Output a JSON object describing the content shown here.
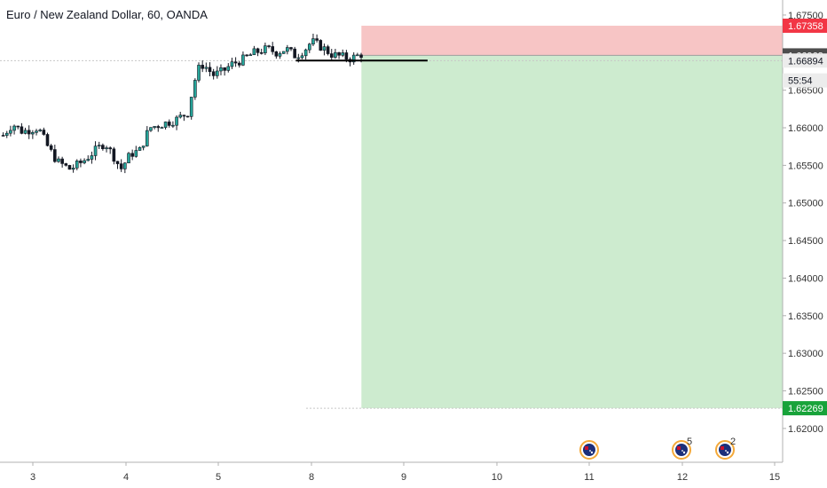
{
  "header": {
    "title": "Euro / New Zealand Dollar, 60, OANDA"
  },
  "chart_data": {
    "type": "candlestick",
    "symbol": "Euro / New Zealand Dollar",
    "interval": "60",
    "source": "OANDA",
    "ylim": [
      1.6155,
      1.677
    ],
    "xlim": [
      2.7,
      15.0
    ],
    "y_ticks": [
      "1.67500",
      "1.67000",
      "1.66500",
      "1.66000",
      "1.65500",
      "1.65000",
      "1.64500",
      "1.64000",
      "1.63500",
      "1.63000",
      "1.62500",
      "1.62000"
    ],
    "y_tick_values": [
      1.675,
      1.67,
      1.665,
      1.66,
      1.655,
      1.65,
      1.645,
      1.64,
      1.635,
      1.63,
      1.625,
      1.62
    ],
    "x_ticks": [
      "3",
      "4",
      "5",
      "8",
      "9",
      "10",
      "11",
      "12",
      "15"
    ],
    "x_tick_values": [
      3,
      4,
      5,
      6,
      7,
      8,
      9,
      10,
      11
    ],
    "price_path": [
      [
        2.75,
        1.659
      ],
      [
        2.9,
        1.6605
      ],
      [
        3.05,
        1.6595
      ],
      [
        3.3,
        1.66
      ],
      [
        3.45,
        1.6575
      ],
      [
        3.6,
        1.6555
      ],
      [
        3.8,
        1.6545
      ],
      [
        4.0,
        1.6555
      ],
      [
        4.2,
        1.657
      ],
      [
        4.35,
        1.658
      ],
      [
        4.5,
        1.656
      ],
      [
        4.6,
        1.6545
      ],
      [
        4.75,
        1.6565
      ],
      [
        4.9,
        1.657
      ],
      [
        5.05,
        1.66
      ],
      [
        5.25,
        1.6605
      ],
      [
        5.45,
        1.661
      ],
      [
        5.55,
        1.6615
      ],
      [
        5.65,
        1.662
      ],
      [
        5.75,
        1.666
      ],
      [
        5.85,
        1.6685
      ],
      [
        5.95,
        1.668
      ],
      [
        6.05,
        1.667
      ],
      [
        6.2,
        1.6675
      ],
      [
        6.35,
        1.6685
      ],
      [
        6.5,
        1.669
      ],
      [
        6.7,
        1.67
      ],
      [
        6.9,
        1.6705
      ],
      [
        7.05,
        1.67
      ],
      [
        7.2,
        1.6705
      ],
      [
        7.35,
        1.6695
      ],
      [
        7.5,
        1.6705
      ],
      [
        7.6,
        1.6715
      ],
      [
        7.7,
        1.671
      ],
      [
        7.8,
        1.6705
      ],
      [
        7.9,
        1.6698
      ],
      [
        8.0,
        1.6696
      ],
      [
        8.1,
        1.6694
      ],
      [
        8.2,
        1.6692
      ],
      [
        8.3,
        1.6695
      ],
      [
        8.38,
        1.6698
      ]
    ],
    "support_line": {
      "price": 1.66894,
      "from_x": 7.35,
      "to_x": 9.42
    },
    "position": {
      "side": "short",
      "start_x": 8.38,
      "end_x": 15.0,
      "entry": 1.66963,
      "stop": 1.67358,
      "target": 1.62269,
      "stop_color": "#f7c5c5",
      "target_color": "#cdebcf"
    },
    "price_labels": [
      {
        "label": "1.67358",
        "value": 1.67358,
        "bg": "#f23645",
        "fg": "#ffffff"
      },
      {
        "label": "1.66963",
        "value": 1.66963,
        "bg": "#4d4d4d",
        "fg": "#ffffff"
      },
      {
        "label": "1.66894",
        "value": 1.66894,
        "bg": "#ececec",
        "fg": "#131722"
      },
      {
        "label": "55:54",
        "value": 1.6663,
        "bg": "#ececec",
        "fg": "#131722"
      },
      {
        "label": "1.62269",
        "value": 1.62269,
        "bg": "#18a33a",
        "fg": "#ffffff"
      }
    ],
    "events": [
      {
        "x": 9.0,
        "count": "",
        "icon": "flag-icon"
      },
      {
        "x": 10.0,
        "count": "5",
        "icon": "flag-icon"
      },
      {
        "x": 10.5,
        "count": "2",
        "icon": "flag-icon"
      }
    ],
    "colors": {
      "up": "#26a69a",
      "down": "#131722",
      "axis_line": "#b0b0b0",
      "dotted_line": "#c8c8c8"
    }
  }
}
